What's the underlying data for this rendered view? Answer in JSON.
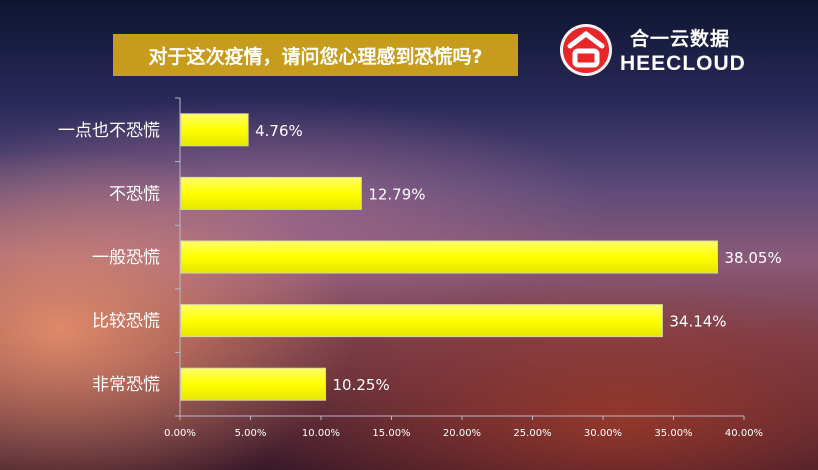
{
  "title": "对于这次疫情，请问您心理感到恐慌吗?",
  "logo": {
    "cn": "合一云数据",
    "en": "HEECLOUD"
  },
  "colors": {
    "bar": "#ffff00",
    "title_bg": "#c79b1c",
    "logo_red": "#e8262a"
  },
  "chart_data": {
    "type": "bar",
    "orientation": "horizontal",
    "title": "对于这次疫情，请问您心理感到恐慌吗?",
    "categories": [
      "一点也不恐慌",
      "不恐慌",
      "一般恐慌",
      "比较恐慌",
      "非常恐慌"
    ],
    "values": [
      4.76,
      12.79,
      38.05,
      34.14,
      10.25
    ],
    "value_labels": [
      "4.76%",
      "12.79%",
      "38.05%",
      "34.14%",
      "10.25%"
    ],
    "xlim": [
      0,
      40
    ],
    "x_ticks": [
      "0.00%",
      "5.00%",
      "10.00%",
      "15.00%",
      "20.00%",
      "25.00%",
      "30.00%",
      "35.00%",
      "40.00%"
    ],
    "xlabel": "",
    "ylabel": "",
    "grid": false,
    "legend": "none"
  }
}
